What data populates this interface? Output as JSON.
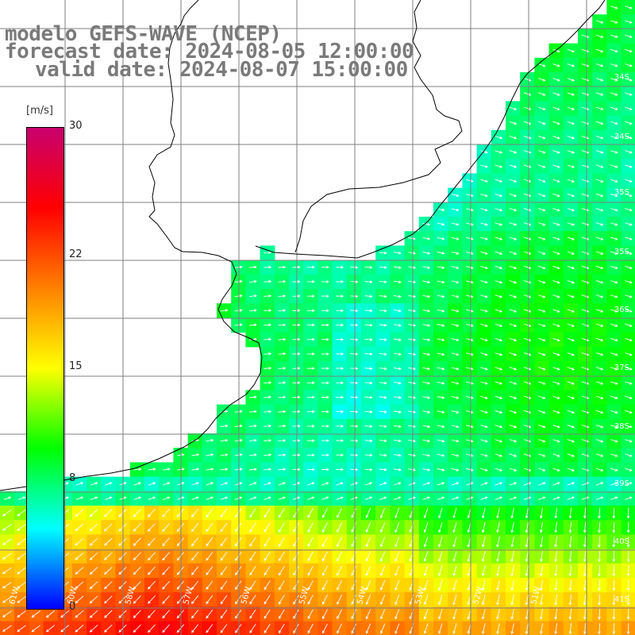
{
  "title": {
    "line1": "modelo GEFS-WAVE (NCEP)",
    "line2": "forecast date: 2024-08-05 12:00:00",
    "line3": "valid date: 2024-08-07 15:00:00"
  },
  "colorbar": {
    "unit": "[m/s]",
    "ticks": [
      "30",
      "22",
      "15",
      "8",
      "0"
    ],
    "tick_values": [
      30,
      22,
      15,
      8,
      0
    ],
    "range": [
      0,
      30
    ],
    "colors": [
      "#0000ff",
      "#00ffff",
      "#00ff00",
      "#ffff00",
      "#ff8000",
      "#ff0000",
      "#c8006e"
    ]
  },
  "map": {
    "lat_labels": [
      "34S",
      "34S",
      "35S",
      "35S",
      "36S",
      "37S",
      "38S",
      "39S",
      "40S",
      "41S"
    ],
    "lon_labels": [
      "61W",
      "60W",
      "58W",
      "57W",
      "56W",
      "55W",
      "54W",
      "53W",
      "52W",
      "51W"
    ],
    "land_color": "#ffffff",
    "grid_color": "#7f7f7f",
    "arrow_color": "#ffffff",
    "arrow_icon": "wind-arrow-icon"
  }
}
